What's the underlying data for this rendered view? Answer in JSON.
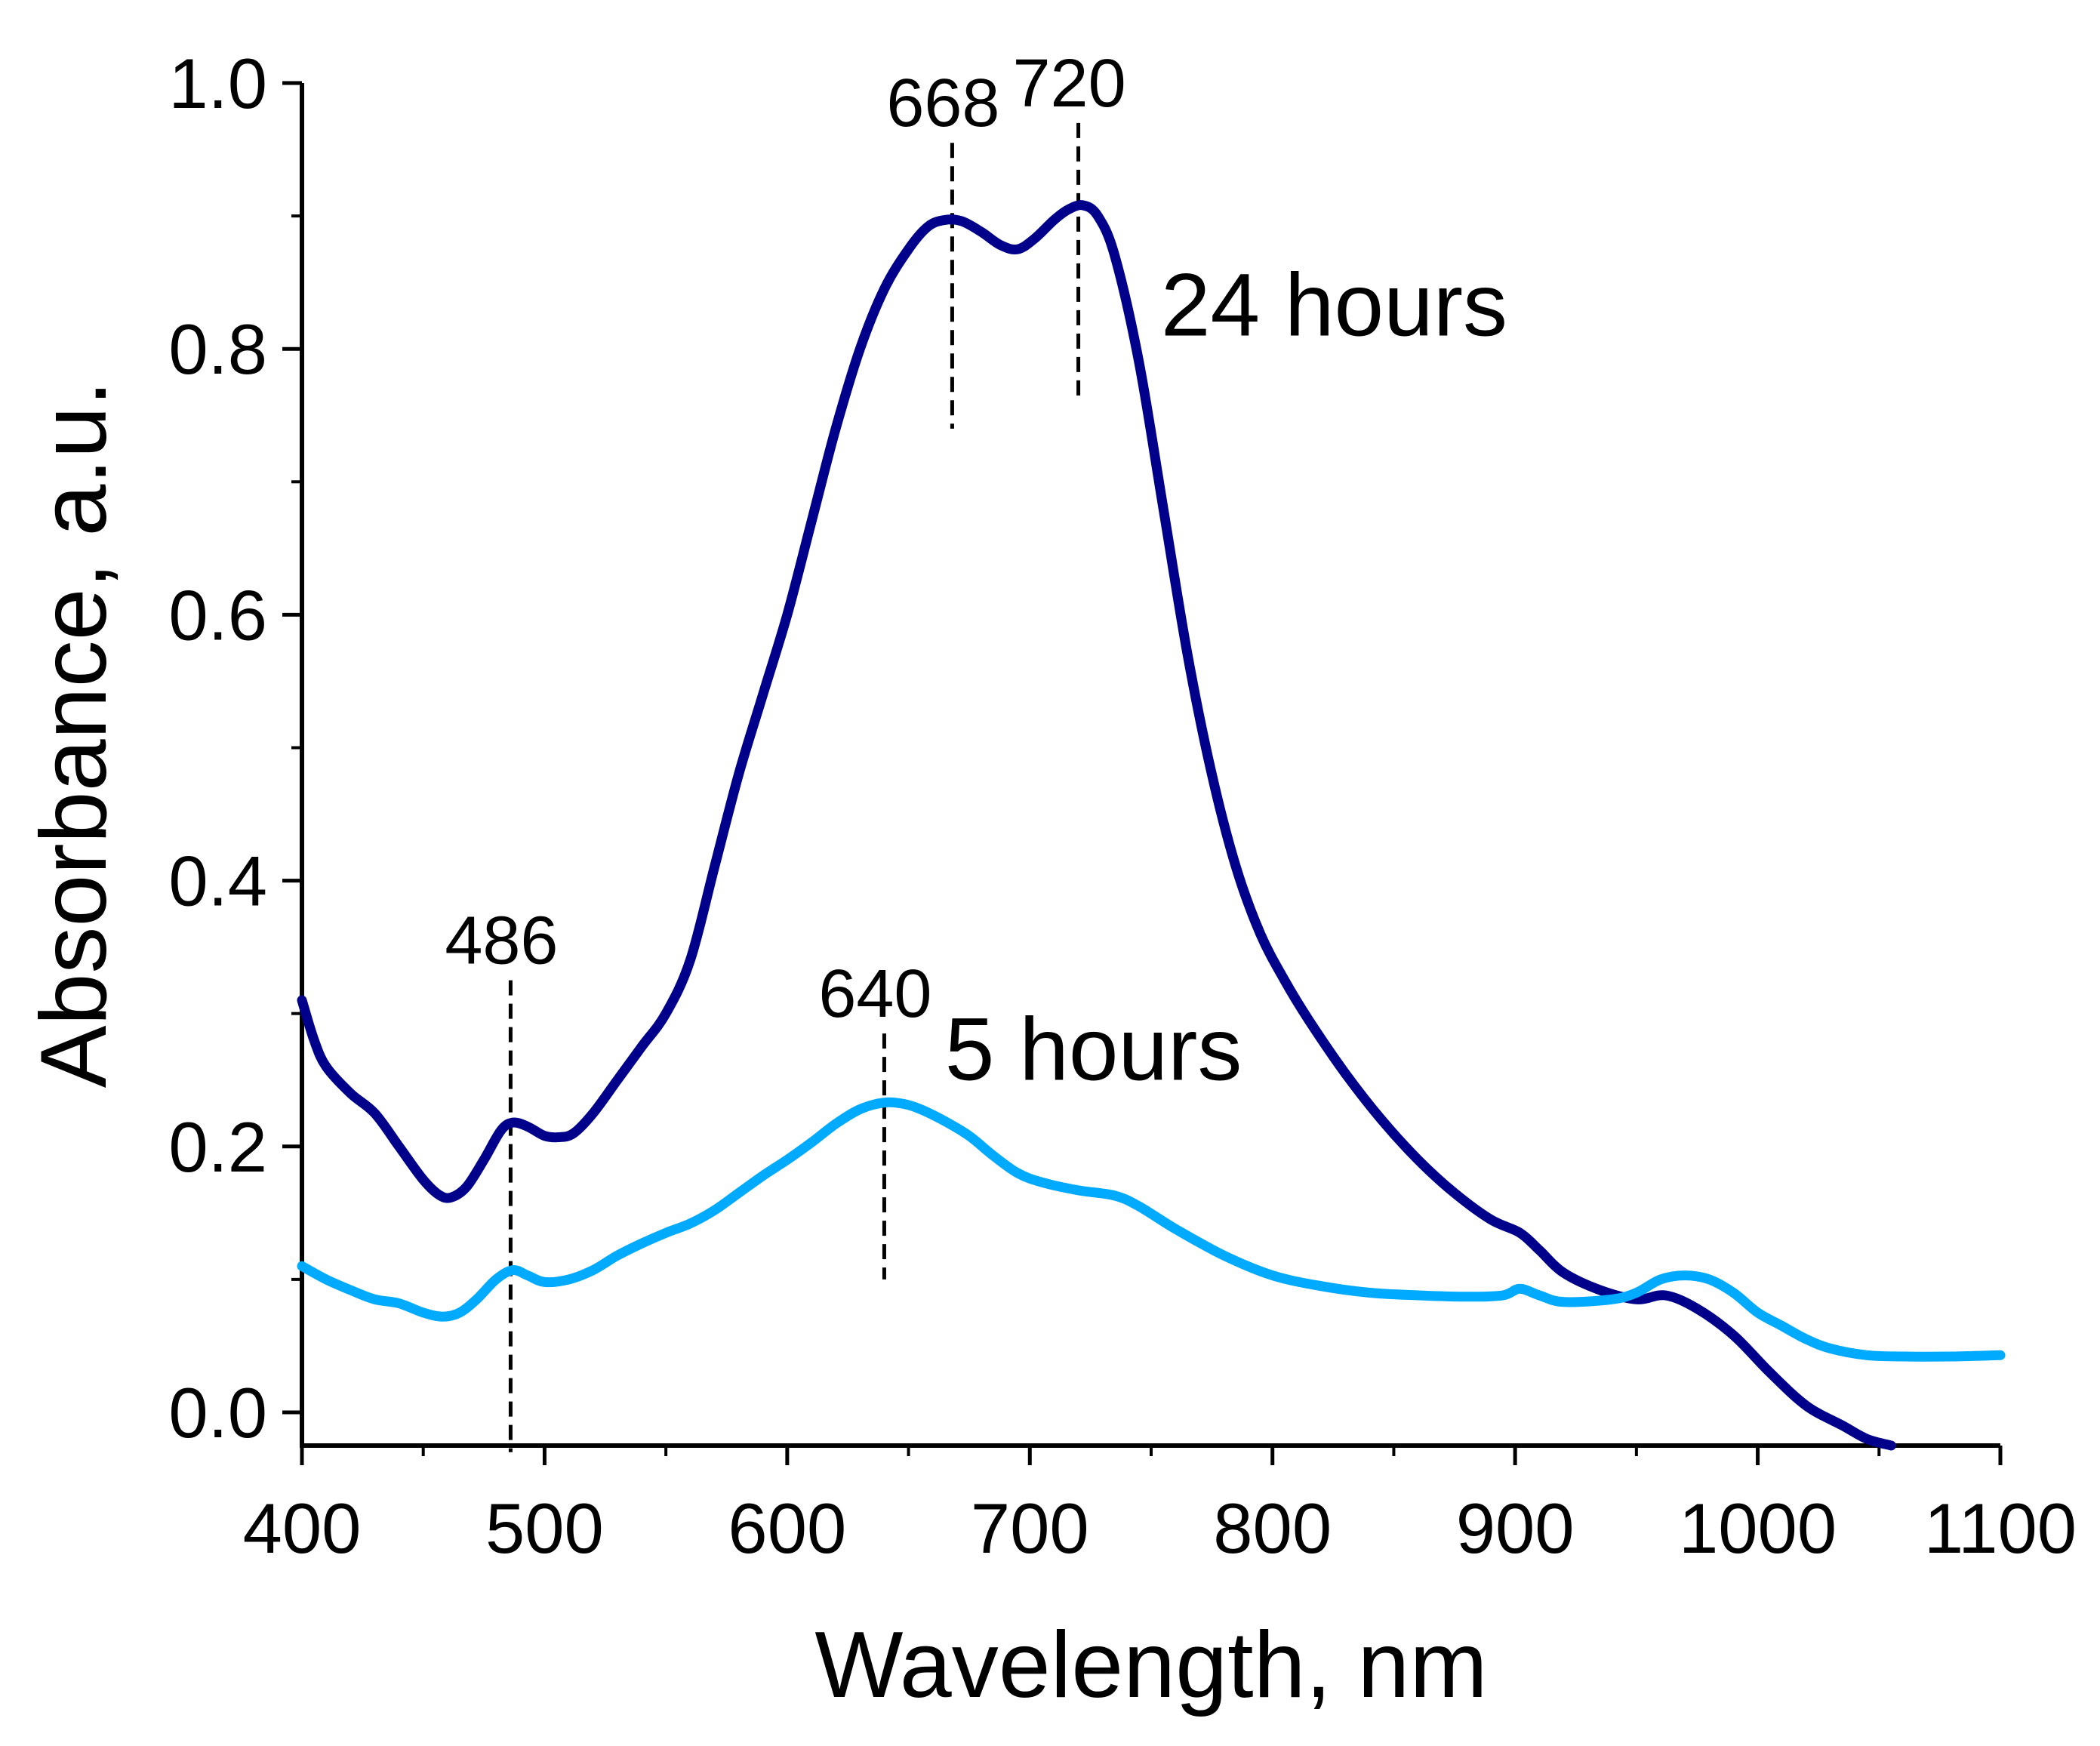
{
  "chart_data": {
    "type": "line",
    "title": "",
    "xlabel": "Wavelength, nm",
    "ylabel": "Absorbance, a.u.",
    "xlim": [
      400,
      1100
    ],
    "ylim": [
      -0.025,
      1.0
    ],
    "x_ticks": [
      400,
      500,
      600,
      700,
      800,
      900,
      1000,
      1100
    ],
    "x_tick_labels": [
      "400",
      "500",
      "600",
      "700",
      "800",
      "900",
      "1000",
      "1100"
    ],
    "y_ticks": [
      0.0,
      0.2,
      0.4,
      0.6,
      0.8,
      1.0
    ],
    "y_tick_labels": [
      "0.0",
      "0.2",
      "0.4",
      "0.6",
      "0.8",
      "1.0"
    ],
    "x_minor_ticks": [
      450,
      550,
      650,
      750,
      850,
      950,
      1050
    ],
    "y_minor_ticks": [
      0.1,
      0.3,
      0.5,
      0.7,
      0.9
    ],
    "grid": false,
    "series": [
      {
        "name": "24 hours",
        "color": "#00008B",
        "x": [
          400,
          405,
          410,
          420,
          430,
          440,
          450,
          457,
          462,
          468,
          475,
          482,
          487,
          493,
          500,
          506,
          512,
          520,
          530,
          540,
          550,
          560,
          570,
          580,
          590,
          600,
          610,
          620,
          630,
          640,
          650,
          658,
          665,
          672,
          680,
          688,
          695,
          702,
          710,
          716,
          722,
          728,
          735,
          745,
          755,
          765,
          775,
          785,
          795,
          805,
          815,
          830,
          845,
          860,
          875,
          890,
          902,
          910,
          920,
          935,
          950,
          962,
          975,
          990,
          1005,
          1020,
          1035,
          1045,
          1055
        ],
        "values": [
          0.31,
          0.28,
          0.26,
          0.24,
          0.225,
          0.2,
          0.175,
          0.163,
          0.162,
          0.17,
          0.19,
          0.212,
          0.218,
          0.215,
          0.208,
          0.207,
          0.21,
          0.225,
          0.25,
          0.275,
          0.3,
          0.34,
          0.41,
          0.48,
          0.54,
          0.6,
          0.67,
          0.74,
          0.8,
          0.845,
          0.875,
          0.892,
          0.897,
          0.896,
          0.888,
          0.878,
          0.875,
          0.883,
          0.897,
          0.905,
          0.908,
          0.9,
          0.87,
          0.79,
          0.68,
          0.57,
          0.48,
          0.41,
          0.36,
          0.325,
          0.295,
          0.255,
          0.22,
          0.19,
          0.165,
          0.145,
          0.135,
          0.122,
          0.105,
          0.092,
          0.085,
          0.088,
          0.078,
          0.058,
          0.03,
          0.005,
          -0.01,
          -0.02,
          -0.025
        ]
      },
      {
        "name": "5 hours",
        "color": "#00AAFF",
        "x": [
          400,
          410,
          420,
          430,
          440,
          450,
          458,
          465,
          472,
          480,
          487,
          493,
          500,
          510,
          520,
          530,
          540,
          550,
          560,
          570,
          580,
          590,
          600,
          610,
          620,
          630,
          640,
          648,
          655,
          665,
          675,
          685,
          695,
          705,
          720,
          735,
          745,
          760,
          780,
          800,
          820,
          840,
          860,
          880,
          895,
          902,
          910,
          920,
          940,
          950,
          960,
          970,
          980,
          990,
          1000,
          1010,
          1020,
          1030,
          1045,
          1060,
          1080,
          1100
        ],
        "values": [
          0.11,
          0.1,
          0.092,
          0.085,
          0.082,
          0.075,
          0.072,
          0.075,
          0.085,
          0.1,
          0.107,
          0.103,
          0.098,
          0.1,
          0.107,
          0.118,
          0.127,
          0.135,
          0.142,
          0.152,
          0.165,
          0.178,
          0.19,
          0.203,
          0.217,
          0.228,
          0.233,
          0.232,
          0.228,
          0.219,
          0.208,
          0.193,
          0.18,
          0.173,
          0.167,
          0.163,
          0.155,
          0.138,
          0.118,
          0.103,
          0.095,
          0.09,
          0.088,
          0.087,
          0.088,
          0.093,
          0.088,
          0.083,
          0.085,
          0.09,
          0.1,
          0.103,
          0.1,
          0.09,
          0.075,
          0.065,
          0.055,
          0.048,
          0.043,
          0.042,
          0.042,
          0.043
        ]
      }
    ],
    "annotations": [
      {
        "text": "668",
        "x": 668,
        "y_from": 0.74,
        "y_to": 0.955
      },
      {
        "text": "720",
        "x": 720,
        "y_from": 0.76,
        "y_to": 0.97
      },
      {
        "text": "486",
        "x": 486,
        "y_from": -0.03,
        "y_to": 0.325
      },
      {
        "text": "640",
        "x": 640,
        "y_from": 0.1,
        "y_to": 0.285
      }
    ],
    "series_labels": [
      {
        "text": "24 hours",
        "x": 754,
        "y": 0.81
      },
      {
        "text": "5 hours",
        "x": 665,
        "y": 0.25
      }
    ]
  }
}
